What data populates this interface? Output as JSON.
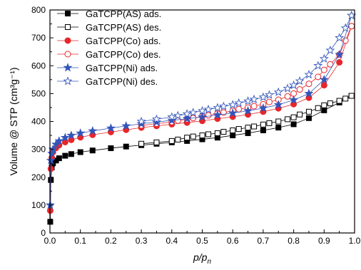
{
  "chart_data": {
    "type": "line",
    "xlabel_main": "p/p",
    "xlabel_sub": "n",
    "ylabel": "Volume @ STP (cm³g⁻¹)",
    "xlim": [
      0.0,
      1.0
    ],
    "ylim": [
      0,
      800
    ],
    "xticks": [
      "0.0",
      "0.1",
      "0.2",
      "0.3",
      "0.4",
      "0.5",
      "0.6",
      "0.7",
      "0.8",
      "0.9",
      "1.0"
    ],
    "yticks": [
      "0",
      "100",
      "200",
      "300",
      "400",
      "500",
      "600",
      "700",
      "800"
    ],
    "legend_position": "top-left",
    "series": [
      {
        "name": "GaTCPP(AS) ads.",
        "color": "#000000",
        "marker": "square",
        "filled": true,
        "x": [
          0.001,
          0.003,
          0.006,
          0.01,
          0.02,
          0.03,
          0.05,
          0.07,
          0.1,
          0.14,
          0.2,
          0.25,
          0.3,
          0.35,
          0.4,
          0.45,
          0.5,
          0.55,
          0.6,
          0.65,
          0.7,
          0.75,
          0.8,
          0.85,
          0.9,
          0.95,
          0.99
        ],
        "y": [
          40,
          190,
          235,
          250,
          260,
          268,
          277,
          283,
          290,
          296,
          304,
          310,
          315,
          320,
          325,
          330,
          336,
          342,
          350,
          358,
          368,
          378,
          390,
          412,
          440,
          468,
          492
        ]
      },
      {
        "name": "GaTCPP(AS) des.",
        "color": "#000000",
        "marker": "square",
        "filled": false,
        "x": [
          0.99,
          0.97,
          0.95,
          0.92,
          0.9,
          0.88,
          0.85,
          0.82,
          0.8,
          0.78,
          0.75,
          0.72,
          0.7,
          0.67,
          0.65,
          0.62,
          0.6,
          0.57,
          0.55,
          0.52,
          0.5,
          0.47,
          0.45,
          0.42,
          0.4,
          0.35,
          0.3
        ],
        "y": [
          492,
          482,
          474,
          465,
          458,
          448,
          435,
          425,
          415,
          408,
          400,
          394,
          389,
          382,
          378,
          373,
          368,
          363,
          358,
          354,
          350,
          346,
          342,
          335,
          330,
          325,
          320
        ]
      },
      {
        "name": "GaTCPP(Co) ads.",
        "color": "#e8262a",
        "marker": "circle",
        "filled": true,
        "x": [
          0.001,
          0.003,
          0.006,
          0.01,
          0.02,
          0.03,
          0.05,
          0.07,
          0.1,
          0.14,
          0.2,
          0.25,
          0.3,
          0.35,
          0.4,
          0.45,
          0.5,
          0.55,
          0.6,
          0.65,
          0.7,
          0.75,
          0.8,
          0.85,
          0.9,
          0.95,
          0.99
        ],
        "y": [
          80,
          230,
          270,
          290,
          305,
          315,
          326,
          334,
          343,
          352,
          362,
          370,
          378,
          384,
          390,
          396,
          402,
          410,
          417,
          425,
          435,
          447,
          462,
          485,
          530,
          612,
          742
        ]
      },
      {
        "name": "GaTCPP(Co) des.",
        "color": "#e8262a",
        "marker": "circle",
        "filled": false,
        "x": [
          0.99,
          0.97,
          0.95,
          0.92,
          0.9,
          0.88,
          0.85,
          0.82,
          0.8,
          0.78,
          0.75,
          0.72,
          0.7,
          0.67,
          0.65,
          0.62,
          0.6,
          0.57,
          0.55,
          0.52,
          0.5,
          0.47,
          0.45,
          0.42,
          0.4,
          0.35,
          0.3
        ],
        "y": [
          742,
          690,
          640,
          605,
          585,
          560,
          535,
          515,
          500,
          490,
          478,
          470,
          462,
          455,
          450,
          444,
          438,
          432,
          428,
          422,
          418,
          412,
          408,
          403,
          398,
          392,
          386
        ]
      },
      {
        "name": "GaTCPP(Ni) ads.",
        "color": "#3355bb",
        "marker": "star",
        "filled": true,
        "x": [
          0.001,
          0.003,
          0.006,
          0.01,
          0.02,
          0.03,
          0.05,
          0.07,
          0.1,
          0.14,
          0.2,
          0.25,
          0.3,
          0.35,
          0.4,
          0.45,
          0.5,
          0.55,
          0.6,
          0.65,
          0.7,
          0.75,
          0.8,
          0.85,
          0.9,
          0.95,
          0.99
        ],
        "y": [
          100,
          260,
          285,
          300,
          318,
          330,
          342,
          350,
          358,
          366,
          376,
          384,
          392,
          398,
          404,
          410,
          416,
          423,
          430,
          438,
          448,
          460,
          477,
          500,
          550,
          640,
          780
        ]
      },
      {
        "name": "GaTCPP(Ni) des.",
        "color": "#3355bb",
        "marker": "star",
        "filled": false,
        "x": [
          0.99,
          0.97,
          0.95,
          0.92,
          0.9,
          0.88,
          0.85,
          0.82,
          0.8,
          0.78,
          0.75,
          0.72,
          0.7,
          0.67,
          0.65,
          0.62,
          0.6,
          0.57,
          0.55,
          0.52,
          0.5,
          0.47,
          0.45,
          0.42,
          0.4,
          0.35,
          0.3
        ],
        "y": [
          780,
          735,
          700,
          655,
          625,
          600,
          568,
          545,
          530,
          518,
          505,
          495,
          487,
          479,
          473,
          466,
          460,
          454,
          449,
          443,
          438,
          432,
          427,
          421,
          416,
          408,
          400
        ]
      }
    ]
  }
}
